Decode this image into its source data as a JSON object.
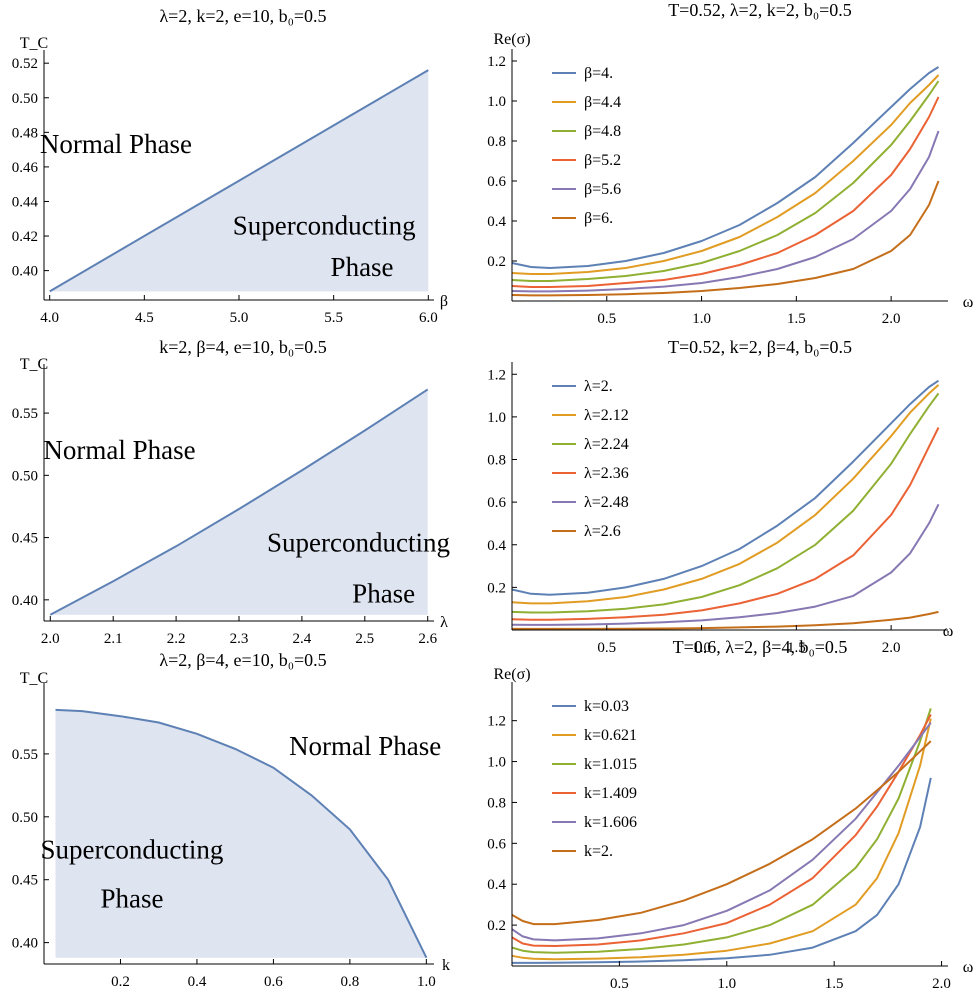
{
  "chart_data": [
    {
      "type": "area",
      "title": "λ=2, k=2, e=10, b₀=0.5",
      "xlabel": "β",
      "ylabel": "T_C",
      "xlim": [
        3.97,
        6.03
      ],
      "ylim": [
        0.383,
        0.523
      ],
      "xticks": [
        4.0,
        4.5,
        5.0,
        5.5,
        6.0
      ],
      "xtick_labels": [
        "4.0",
        "4.5",
        "5.0",
        "5.5",
        "6.0"
      ],
      "yticks": [
        0.4,
        0.42,
        0.44,
        0.46,
        0.48,
        0.5,
        0.52
      ],
      "ytick_labels": [
        "0.40",
        "0.42",
        "0.44",
        "0.46",
        "0.48",
        "0.50",
        "0.52"
      ],
      "fill_base": 0.388,
      "x": [
        4.0,
        4.5,
        5.0,
        5.5,
        6.0
      ],
      "y": [
        0.388,
        0.42,
        0.452,
        0.484,
        0.516
      ],
      "regions": [
        {
          "text": "Normal Phase",
          "x": 4.35,
          "y": 0.468
        },
        {
          "text": "Superconducting",
          "x": 5.45,
          "y": 0.421
        },
        {
          "text": "Phase",
          "x": 5.65,
          "y": 0.397
        }
      ]
    },
    {
      "type": "area",
      "title": "k=2, β=4, e=10, b₀=0.5",
      "xlabel": "λ",
      "ylabel": "T_C",
      "xlim": [
        1.99,
        2.61
      ],
      "ylim": [
        0.383,
        0.583
      ],
      "xticks": [
        2.0,
        2.1,
        2.2,
        2.3,
        2.4,
        2.5,
        2.6
      ],
      "xtick_labels": [
        "2.0",
        "2.1",
        "2.2",
        "2.3",
        "2.4",
        "2.5",
        "2.6"
      ],
      "yticks": [
        0.4,
        0.45,
        0.5,
        0.55
      ],
      "ytick_labels": [
        "0.40",
        "0.45",
        "0.50",
        "0.55"
      ],
      "fill_base": 0.388,
      "x": [
        2.0,
        2.1,
        2.2,
        2.3,
        2.4,
        2.5,
        2.6
      ],
      "y": [
        0.388,
        0.415,
        0.443,
        0.473,
        0.504,
        0.536,
        0.569
      ],
      "regions": [
        {
          "text": "Normal Phase",
          "x": 2.11,
          "y": 0.513
        },
        {
          "text": "Superconducting",
          "x": 2.49,
          "y": 0.439
        },
        {
          "text": "Phase",
          "x": 2.53,
          "y": 0.398
        }
      ]
    },
    {
      "type": "area",
      "title": "λ=2, β=4, e=10, b₀=0.5",
      "xlabel": "k",
      "ylabel": "T_C",
      "xlim": [
        0.0,
        1.02
      ],
      "ylim": [
        0.383,
        0.6
      ],
      "xticks": [
        0.2,
        0.4,
        0.6,
        0.8,
        1.0
      ],
      "xtick_labels": [
        "0.2",
        "0.4",
        "0.6",
        "0.8",
        "1.0"
      ],
      "yticks": [
        0.4,
        0.45,
        0.5,
        0.55
      ],
      "ytick_labels": [
        "0.40",
        "0.45",
        "0.50",
        "0.55"
      ],
      "fill_base": 0.388,
      "x": [
        0.03,
        0.1,
        0.2,
        0.3,
        0.4,
        0.5,
        0.6,
        0.7,
        0.8,
        0.9,
        1.0
      ],
      "y": [
        0.585,
        0.584,
        0.58,
        0.575,
        0.566,
        0.554,
        0.539,
        0.517,
        0.49,
        0.45,
        0.388
      ],
      "regions": [
        {
          "text": "Normal Phase",
          "x": 0.84,
          "y": 0.549
        },
        {
          "text": "Superconducting",
          "x": 0.23,
          "y": 0.467
        },
        {
          "text": "Phase",
          "x": 0.23,
          "y": 0.428
        }
      ]
    },
    {
      "type": "line",
      "title": "T=0.52, λ=2, k=2, b₀=0.5",
      "xlabel": "ω",
      "ylabel": "Re(σ)",
      "xlim": [
        0.0,
        2.3
      ],
      "ylim": [
        0.0,
        1.22
      ],
      "xticks": [
        0.5,
        1.0,
        1.5,
        2.0
      ],
      "xtick_labels": [
        "0.5",
        "1.0",
        "1.5",
        "2.0"
      ],
      "yticks": [
        0.2,
        0.4,
        0.6,
        0.8,
        1.0,
        1.2
      ],
      "ytick_labels": [
        "0.2",
        "0.4",
        "0.6",
        "0.8",
        "1.0",
        "1.2"
      ],
      "legend": "top-left",
      "x": [
        0.0,
        0.1,
        0.2,
        0.4,
        0.6,
        0.8,
        1.0,
        1.2,
        1.4,
        1.6,
        1.8,
        2.0,
        2.1,
        2.2,
        2.25
      ],
      "series": [
        {
          "name": "β=4.",
          "color": "#5E81B5",
          "values": [
            0.19,
            0.17,
            0.165,
            0.175,
            0.2,
            0.24,
            0.3,
            0.38,
            0.49,
            0.62,
            0.79,
            0.97,
            1.06,
            1.14,
            1.17
          ]
        },
        {
          "name": "β=4.4",
          "color": "#E19C24",
          "values": [
            0.14,
            0.135,
            0.135,
            0.145,
            0.165,
            0.2,
            0.25,
            0.32,
            0.42,
            0.54,
            0.7,
            0.88,
            0.99,
            1.08,
            1.13
          ]
        },
        {
          "name": "β=4.8",
          "color": "#8FB032",
          "values": [
            0.105,
            0.1,
            0.1,
            0.11,
            0.125,
            0.15,
            0.19,
            0.25,
            0.33,
            0.44,
            0.59,
            0.78,
            0.9,
            1.03,
            1.1
          ]
        },
        {
          "name": "β=5.2",
          "color": "#EB6235",
          "values": [
            0.075,
            0.07,
            0.07,
            0.075,
            0.09,
            0.105,
            0.135,
            0.18,
            0.24,
            0.33,
            0.45,
            0.63,
            0.76,
            0.92,
            1.02
          ]
        },
        {
          "name": "β=5.6",
          "color": "#8778B3",
          "values": [
            0.05,
            0.048,
            0.048,
            0.052,
            0.06,
            0.072,
            0.09,
            0.12,
            0.16,
            0.22,
            0.31,
            0.45,
            0.56,
            0.72,
            0.85
          ]
        },
        {
          "name": "β=6.",
          "color": "#C56E1A",
          "values": [
            0.03,
            0.028,
            0.028,
            0.03,
            0.034,
            0.04,
            0.05,
            0.065,
            0.085,
            0.115,
            0.16,
            0.25,
            0.33,
            0.48,
            0.6
          ]
        }
      ]
    },
    {
      "type": "line",
      "title": "T=0.52, k=2, β=4, b₀=0.5",
      "xlabel": "ω",
      "ylabel": "",
      "xlim": [
        0.0,
        2.3
      ],
      "ylim": [
        0.0,
        1.22
      ],
      "xticks": [
        0.5,
        1.0,
        1.5,
        2.0
      ],
      "xtick_labels": [
        "0.5",
        "1.0",
        "1.5",
        "2.0"
      ],
      "yticks": [
        0.2,
        0.4,
        0.6,
        0.8,
        1.0,
        1.2
      ],
      "ytick_labels": [
        "0.2",
        "0.4",
        "0.6",
        "0.8",
        "1.0",
        "1.2"
      ],
      "legend": "top-left",
      "x": [
        0.0,
        0.1,
        0.2,
        0.4,
        0.6,
        0.8,
        1.0,
        1.2,
        1.4,
        1.6,
        1.8,
        2.0,
        2.1,
        2.2,
        2.25
      ],
      "series": [
        {
          "name": "λ=2.",
          "color": "#5E81B5",
          "values": [
            0.19,
            0.17,
            0.165,
            0.175,
            0.2,
            0.24,
            0.3,
            0.38,
            0.49,
            0.62,
            0.79,
            0.97,
            1.06,
            1.14,
            1.17
          ]
        },
        {
          "name": "λ=2.12",
          "color": "#E19C24",
          "values": [
            0.13,
            0.125,
            0.125,
            0.135,
            0.155,
            0.19,
            0.24,
            0.31,
            0.41,
            0.54,
            0.71,
            0.91,
            1.02,
            1.11,
            1.15
          ]
        },
        {
          "name": "λ=2.24",
          "color": "#8FB032",
          "values": [
            0.085,
            0.082,
            0.082,
            0.088,
            0.1,
            0.12,
            0.155,
            0.21,
            0.29,
            0.4,
            0.56,
            0.78,
            0.92,
            1.05,
            1.11
          ]
        },
        {
          "name": "λ=2.36",
          "color": "#EB6235",
          "values": [
            0.05,
            0.048,
            0.048,
            0.052,
            0.06,
            0.072,
            0.092,
            0.125,
            0.17,
            0.24,
            0.35,
            0.54,
            0.68,
            0.86,
            0.95
          ]
        },
        {
          "name": "λ=2.48",
          "color": "#8778B3",
          "values": [
            0.025,
            0.024,
            0.024,
            0.026,
            0.03,
            0.036,
            0.045,
            0.06,
            0.08,
            0.11,
            0.16,
            0.27,
            0.36,
            0.5,
            0.59
          ]
        },
        {
          "name": "λ=2.6",
          "color": "#C56E1A",
          "values": [
            0.005,
            0.005,
            0.005,
            0.005,
            0.006,
            0.007,
            0.009,
            0.012,
            0.016,
            0.022,
            0.032,
            0.048,
            0.058,
            0.075,
            0.085
          ]
        }
      ]
    },
    {
      "type": "line",
      "title": "T=0.6, λ=2, β=4, b₀=0.5",
      "xlabel": "ω",
      "ylabel": "Re(σ)",
      "xlim": [
        0.0,
        2.03
      ],
      "ylim": [
        0.0,
        1.35
      ],
      "xticks": [
        0.5,
        1.0,
        1.5,
        2.0
      ],
      "xtick_labels": [
        "0.5",
        "1.0",
        "1.5",
        "2.0"
      ],
      "yticks": [
        0.2,
        0.4,
        0.6,
        0.8,
        1.0,
        1.2
      ],
      "ytick_labels": [
        "0.2",
        "0.4",
        "0.6",
        "0.8",
        "1.0",
        "1.2"
      ],
      "legend": "top-left",
      "x": [
        0.0,
        0.05,
        0.1,
        0.2,
        0.4,
        0.6,
        0.8,
        1.0,
        1.2,
        1.4,
        1.6,
        1.7,
        1.8,
        1.9,
        1.95
      ],
      "series": [
        {
          "name": "k=0.03",
          "color": "#5E81B5",
          "values": [
            0.015,
            0.015,
            0.015,
            0.016,
            0.018,
            0.022,
            0.028,
            0.038,
            0.055,
            0.09,
            0.17,
            0.25,
            0.4,
            0.68,
            0.92
          ]
        },
        {
          "name": "k=0.621",
          "color": "#E19C24",
          "values": [
            0.05,
            0.04,
            0.035,
            0.033,
            0.036,
            0.043,
            0.055,
            0.075,
            0.11,
            0.17,
            0.3,
            0.43,
            0.65,
            0.98,
            1.21
          ]
        },
        {
          "name": "k=1.015",
          "color": "#8FB032",
          "values": [
            0.09,
            0.075,
            0.068,
            0.065,
            0.07,
            0.083,
            0.105,
            0.14,
            0.2,
            0.3,
            0.48,
            0.62,
            0.82,
            1.1,
            1.26
          ]
        },
        {
          "name": "k=1.409",
          "color": "#EB6235",
          "values": [
            0.14,
            0.11,
            0.1,
            0.098,
            0.105,
            0.125,
            0.16,
            0.21,
            0.3,
            0.43,
            0.64,
            0.78,
            0.95,
            1.13,
            1.23
          ]
        },
        {
          "name": "k=1.606",
          "color": "#8778B3",
          "values": [
            0.18,
            0.145,
            0.13,
            0.125,
            0.135,
            0.16,
            0.2,
            0.27,
            0.37,
            0.52,
            0.72,
            0.85,
            0.98,
            1.12,
            1.19
          ]
        },
        {
          "name": "k=2.",
          "color": "#C56E1A",
          "values": [
            0.25,
            0.22,
            0.205,
            0.205,
            0.225,
            0.26,
            0.32,
            0.4,
            0.5,
            0.62,
            0.77,
            0.86,
            0.95,
            1.05,
            1.1
          ]
        }
      ]
    }
  ]
}
